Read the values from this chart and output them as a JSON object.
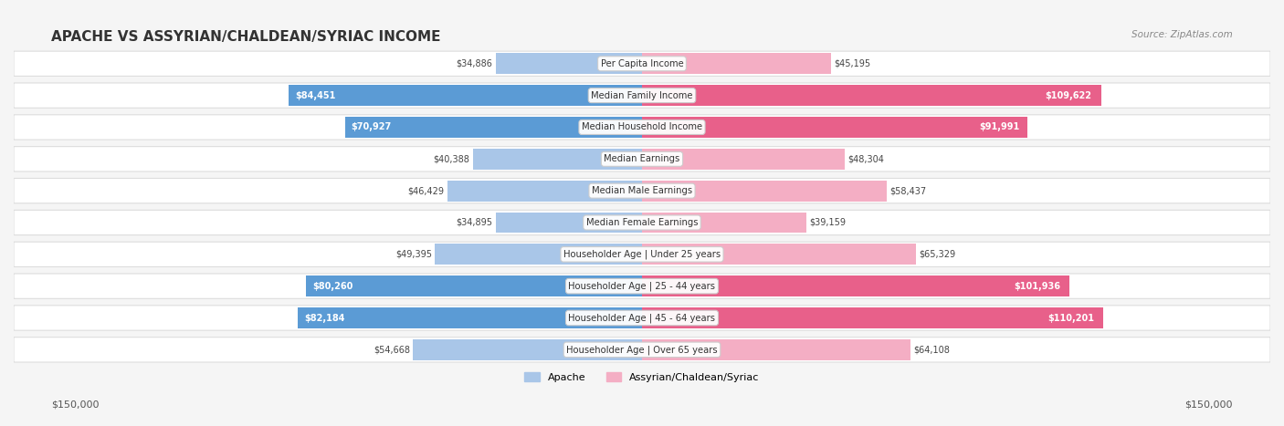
{
  "title": "APACHE VS ASSYRIAN/CHALDEAN/SYRIAC INCOME",
  "source": "Source: ZipAtlas.com",
  "categories": [
    "Per Capita Income",
    "Median Family Income",
    "Median Household Income",
    "Median Earnings",
    "Median Male Earnings",
    "Median Female Earnings",
    "Householder Age | Under 25 years",
    "Householder Age | 25 - 44 years",
    "Householder Age | 45 - 64 years",
    "Householder Age | Over 65 years"
  ],
  "apache_values": [
    34886,
    84451,
    70927,
    40388,
    46429,
    34895,
    49395,
    80260,
    82184,
    54668
  ],
  "assyrian_values": [
    45195,
    109622,
    91991,
    48304,
    58437,
    39159,
    65329,
    101936,
    110201,
    64108
  ],
  "apache_labels": [
    "$34,886",
    "$84,451",
    "$70,927",
    "$40,388",
    "$46,429",
    "$34,895",
    "$49,395",
    "$80,260",
    "$82,184",
    "$54,668"
  ],
  "assyrian_labels": [
    "$45,195",
    "$109,622",
    "$91,991",
    "$48,304",
    "$58,437",
    "$39,159",
    "$65,329",
    "$101,936",
    "$110,201",
    "$64,108"
  ],
  "apache_color_dark": "#5b9bd5",
  "apache_color_light": "#a9c6e8",
  "assyrian_color_dark": "#e8608a",
  "assyrian_color_light": "#f4aec4",
  "max_value": 150000,
  "xlabel_left": "$150,000",
  "xlabel_right": "$150,000",
  "legend_apache": "Apache",
  "legend_assyrian": "Assyrian/Chaldean/Syriac",
  "bg_color": "#f5f5f5",
  "row_bg_color": "#ffffff",
  "row_border_color": "#dddddd"
}
